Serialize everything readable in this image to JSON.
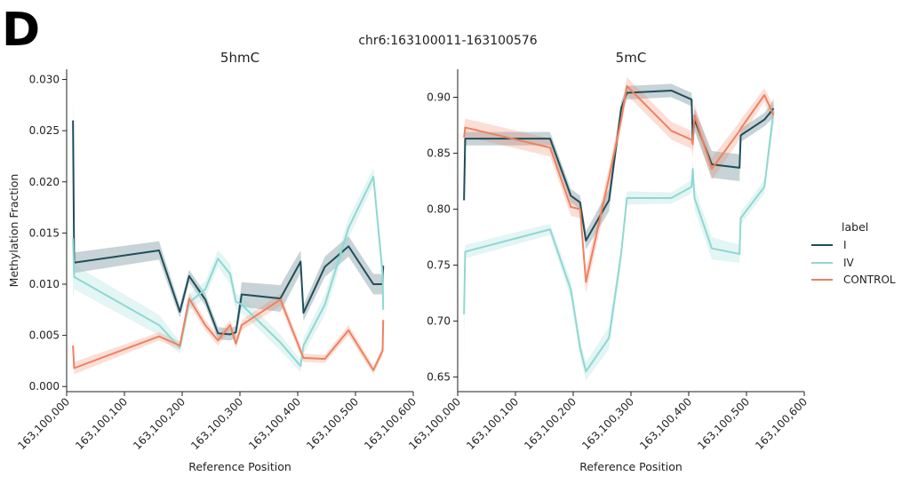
{
  "figure": {
    "panel_letter": "D",
    "suptitle": "chr6:163100011-163100576"
  },
  "legend": {
    "title": "label",
    "entries": [
      {
        "name": "I",
        "color": "#1f4e5a"
      },
      {
        "name": "IV",
        "color": "#8fd8d2"
      },
      {
        "name": "CONTROL",
        "color": "#f0805f"
      }
    ]
  },
  "chart_data": [
    {
      "type": "line",
      "title": "5hmC",
      "xlabel": "Reference Position",
      "ylabel": "Methylation Fraction",
      "xlim": [
        163100000,
        163100600
      ],
      "ylim": [
        -0.0005,
        0.031
      ],
      "xticks": [
        163100000,
        163100100,
        163100200,
        163100300,
        163100400,
        163100500,
        163100600
      ],
      "xtick_labels": [
        "163,100,000",
        "163,100,100",
        "163,100,200",
        "163,100,300",
        "163,100,400",
        "163,100,500",
        "163,100,600"
      ],
      "yticks": [
        0.0,
        0.005,
        0.01,
        0.015,
        0.02,
        0.025,
        0.03
      ],
      "ytick_labels": [
        "0.000",
        "0.005",
        "0.010",
        "0.015",
        "0.020",
        "0.025",
        "0.030"
      ],
      "series": [
        {
          "name": "I",
          "color": "#1f4e5a",
          "x": [
            163100011,
            163100013,
            163100160,
            163100196,
            163100212,
            163100240,
            163100262,
            163100283,
            163100293,
            163100303,
            163100370,
            163100405,
            163100410,
            163100447,
            163100488,
            163100531,
            163100547,
            163100548
          ],
          "y": [
            0.026,
            0.0121,
            0.0133,
            0.0073,
            0.0108,
            0.0085,
            0.0052,
            0.0051,
            0.0053,
            0.009,
            0.0086,
            0.0122,
            0.0072,
            0.0117,
            0.0137,
            0.01,
            0.01,
            0.0118
          ],
          "band": [
            0.0024,
            0.001,
            0.0009,
            0.0006,
            0.0006,
            0.0006,
            0.0006,
            0.0006,
            0.0006,
            0.0012,
            0.0013,
            0.0011,
            0.0008,
            0.001,
            0.001,
            0.001,
            0.001,
            0.0008
          ]
        },
        {
          "name": "IV",
          "color": "#8fd8d2",
          "x": [
            163100011,
            163100013,
            163100160,
            163100196,
            163100212,
            163100240,
            163100262,
            163100283,
            163100293,
            163100303,
            163100370,
            163100405,
            163100410,
            163100447,
            163100488,
            163100531,
            163100547,
            163100548
          ],
          "y": [
            0.0145,
            0.0107,
            0.006,
            0.0038,
            0.0082,
            0.0095,
            0.0125,
            0.011,
            0.0083,
            0.008,
            0.0043,
            0.002,
            0.004,
            0.008,
            0.0155,
            0.0205,
            0.011,
            0.0075
          ],
          "band": [
            0.006,
            0.0012,
            0.001,
            0.0006,
            0.0008,
            0.0008,
            0.0008,
            0.001,
            0.0008,
            0.0008,
            0.0008,
            0.0006,
            0.0008,
            0.001,
            0.001,
            0.0008,
            0.0012,
            0.001
          ]
        },
        {
          "name": "CONTROL",
          "color": "#f0805f",
          "x": [
            163100011,
            163100013,
            163100160,
            163100196,
            163100212,
            163100240,
            163100262,
            163100283,
            163100293,
            163100303,
            163100370,
            163100405,
            163100410,
            163100447,
            163100488,
            163100531,
            163100547,
            163100548
          ],
          "y": [
            0.004,
            0.0018,
            0.0049,
            0.004,
            0.0086,
            0.006,
            0.0045,
            0.006,
            0.0042,
            0.006,
            0.0085,
            0.0035,
            0.0028,
            0.0027,
            0.0055,
            0.0016,
            0.0035,
            0.0065
          ],
          "band": [
            0.0008,
            0.0006,
            0.0004,
            0.0004,
            0.0006,
            0.0005,
            0.0005,
            0.0005,
            0.0005,
            0.0005,
            0.0006,
            0.0005,
            0.0004,
            0.0004,
            0.0005,
            0.0004,
            0.0005,
            0.0006
          ]
        }
      ]
    },
    {
      "type": "line",
      "title": "5mC",
      "xlabel": "Reference Position",
      "ylabel": "",
      "xlim": [
        163100000,
        163100600
      ],
      "ylim": [
        0.637,
        0.925
      ],
      "xticks": [
        163100000,
        163100100,
        163100200,
        163100300,
        163100400,
        163100500,
        163100600
      ],
      "xtick_labels": [
        "163,100,000",
        "163,100,100",
        "163,100,200",
        "163,100,300",
        "163,100,400",
        "163,100,500",
        "163,100,600"
      ],
      "yticks": [
        0.65,
        0.7,
        0.75,
        0.8,
        0.85,
        0.9
      ],
      "ytick_labels": [
        "0.65",
        "0.70",
        "0.75",
        "0.80",
        "0.85",
        "0.90"
      ],
      "series": [
        {
          "name": "I",
          "color": "#1f4e5a",
          "x": [
            163100011,
            163100013,
            163100160,
            163100196,
            163100212,
            163100222,
            163100262,
            163100283,
            163100293,
            163100370,
            163100405,
            163100407,
            163100410,
            163100440,
            163100488,
            163100490,
            163100531,
            163100547
          ],
          "y": [
            0.808,
            0.863,
            0.863,
            0.812,
            0.806,
            0.772,
            0.808,
            0.89,
            0.904,
            0.906,
            0.898,
            0.862,
            0.88,
            0.84,
            0.837,
            0.866,
            0.88,
            0.89
          ],
          "band": [
            0.006,
            0.006,
            0.006,
            0.006,
            0.006,
            0.008,
            0.01,
            0.006,
            0.006,
            0.006,
            0.006,
            0.01,
            0.01,
            0.012,
            0.012,
            0.006,
            0.006,
            0.008
          ]
        },
        {
          "name": "IV",
          "color": "#8fd8d2",
          "x": [
            163100011,
            163100013,
            163100160,
            163100196,
            163100212,
            163100222,
            163100262,
            163100283,
            163100293,
            163100370,
            163100405,
            163100407,
            163100410,
            163100440,
            163100488,
            163100490,
            163100531,
            163100547
          ],
          "y": [
            0.706,
            0.762,
            0.782,
            0.728,
            0.676,
            0.655,
            0.685,
            0.76,
            0.81,
            0.81,
            0.82,
            0.836,
            0.81,
            0.765,
            0.76,
            0.792,
            0.82,
            0.888
          ],
          "band": [
            0.04,
            0.006,
            0.005,
            0.008,
            0.008,
            0.008,
            0.01,
            0.008,
            0.006,
            0.005,
            0.006,
            0.008,
            0.01,
            0.01,
            0.008,
            0.006,
            0.006,
            0.012
          ]
        },
        {
          "name": "CONTROL",
          "color": "#f0805f",
          "x": [
            163100011,
            163100013,
            163100160,
            163100196,
            163100212,
            163100222,
            163100262,
            163100283,
            163100293,
            163100370,
            163100405,
            163100407,
            163100410,
            163100440,
            163100488,
            163100490,
            163100531,
            163100547
          ],
          "y": [
            0.864,
            0.873,
            0.855,
            0.802,
            0.8,
            0.735,
            0.828,
            0.88,
            0.91,
            0.87,
            0.862,
            0.858,
            0.884,
            0.836,
            0.87,
            0.872,
            0.902,
            0.884
          ],
          "band": [
            0.01,
            0.008,
            0.008,
            0.008,
            0.008,
            0.01,
            0.01,
            0.008,
            0.008,
            0.008,
            0.008,
            0.012,
            0.01,
            0.01,
            0.008,
            0.008,
            0.006,
            0.008
          ]
        }
      ]
    }
  ]
}
